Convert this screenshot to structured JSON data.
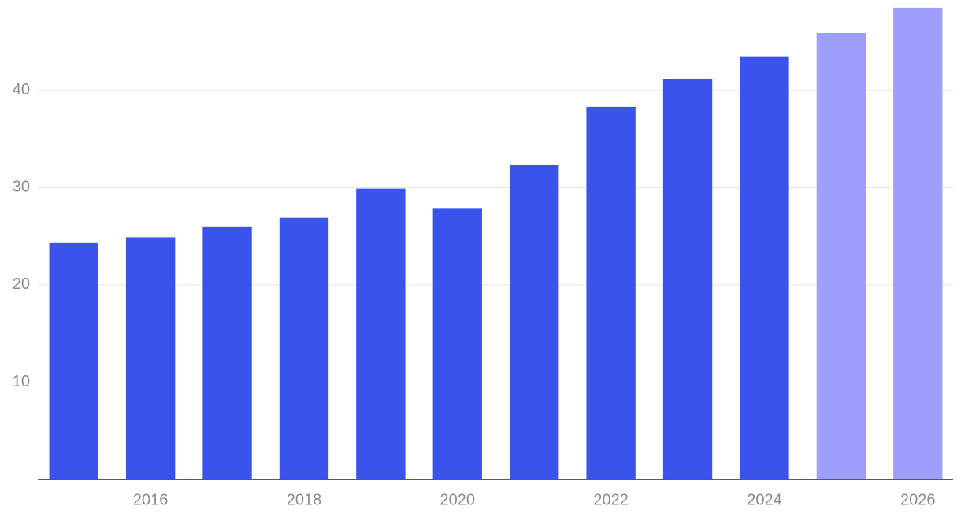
{
  "chart_data": {
    "type": "bar",
    "x": [
      2015,
      2016,
      2017,
      2018,
      2019,
      2020,
      2021,
      2022,
      2023,
      2024,
      2025,
      2026
    ],
    "values": [
      24.3,
      24.9,
      26.0,
      26.9,
      29.9,
      27.9,
      32.3,
      38.3,
      41.2,
      43.5,
      45.9,
      48.5
    ],
    "colors": [
      "#3a53ec",
      "#3a53ec",
      "#3a53ec",
      "#3a53ec",
      "#3a53ec",
      "#3a53ec",
      "#3a53ec",
      "#3a53ec",
      "#3a53ec",
      "#3a53ec",
      "#9e9efc",
      "#9e9efc"
    ],
    "xlim": [
      2014.5,
      2026.5
    ],
    "xticks": [
      2016,
      2018,
      2020,
      2022,
      2024,
      2026
    ],
    "ylim": [
      0,
      49.3
    ],
    "yticks": [
      10,
      20,
      30,
      40
    ],
    "grid": true
  }
}
